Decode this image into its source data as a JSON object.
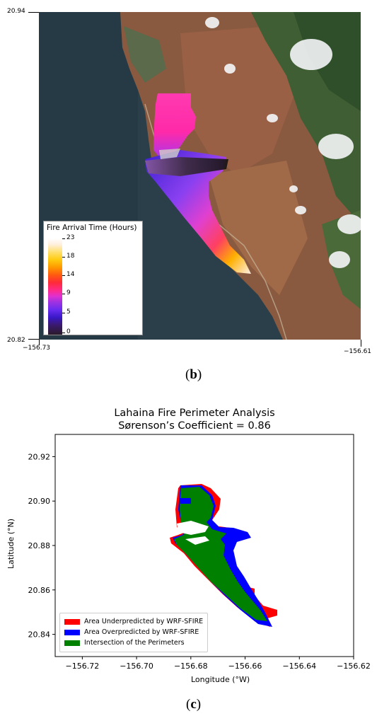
{
  "panel_b": {
    "label": "b",
    "lat_top": "20.94",
    "lat_bottom": "20.82",
    "lon_left": "−156.73",
    "lon_right": "−156.61",
    "colorbar": {
      "title": "Fire Arrival Time (Hours)",
      "ticks": [
        "23",
        "18",
        "14",
        "9",
        "5",
        "0"
      ]
    }
  },
  "panel_c": {
    "label": "c",
    "chart_data": {
      "type": "area",
      "title": "Lahaina Fire Perimeter Analysis",
      "subtitle": "Sørenson’s Coefficient = 0.86",
      "xlabel": "Longitude (°W)",
      "ylabel": "Latitude (°N)",
      "xlim": [
        -156.73,
        -156.62
      ],
      "ylim": [
        20.83,
        20.93
      ],
      "x_ticks": [
        "−156.72",
        "−156.70",
        "−156.68",
        "−156.66",
        "−156.64",
        "−156.62"
      ],
      "y_ticks": [
        "20.92",
        "20.90",
        "20.88",
        "20.86",
        "20.84"
      ],
      "legend_position": "lower-left",
      "series": [
        {
          "name": "Area Underpredicted by WRF-SFIRE",
          "color": "#ff0000"
        },
        {
          "name": "Area Overpredicted by WRF-SFIRE",
          "color": "#0000ff"
        },
        {
          "name": "Intersection of the Perimeters",
          "color": "#008000"
        }
      ]
    }
  }
}
